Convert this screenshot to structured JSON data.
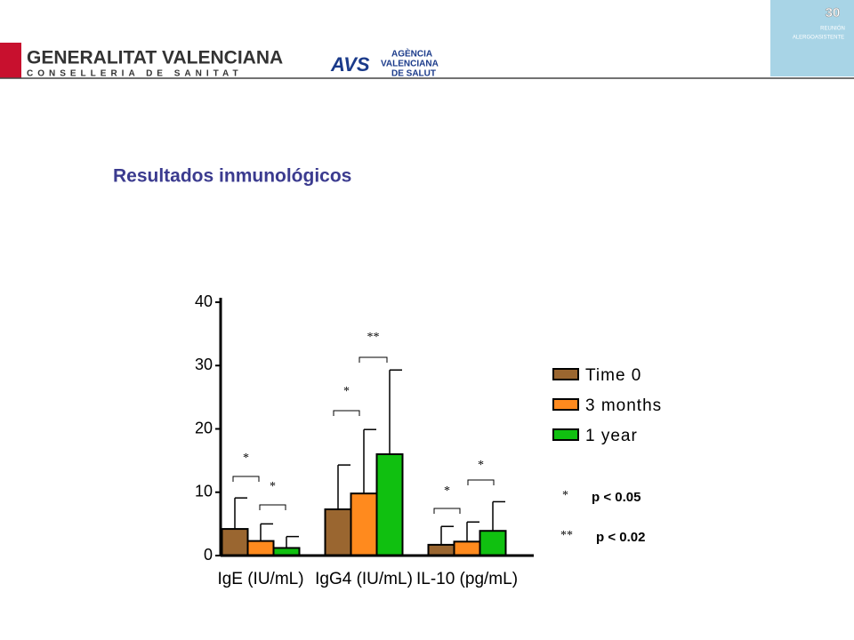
{
  "header": {
    "org_name": "GENERALITAT VALENCIANA",
    "org_dept": "CONSELLERIA DE SANITAT",
    "agency_logo": "AVS",
    "agency_line1": "AGÈNCIA",
    "agency_line2": "VALENCIANA",
    "agency_line3": "DE SALUT",
    "badge_number": "30",
    "badge_line1": "REUNIÓN",
    "badge_line2": "ALERGOASISTENTE"
  },
  "slide_title": "Resultados inmunológicos",
  "chart_data": {
    "type": "bar",
    "categories": [
      "IgE (IU/mL)",
      "IgG4 (IU/mL)",
      "IL-10 (pg/mL)"
    ],
    "series": [
      {
        "name": "Time 0",
        "color": "#9a6630",
        "values": [
          4.2,
          7.3,
          1.7
        ],
        "errors": [
          4.9,
          7.0,
          2.9
        ]
      },
      {
        "name": "3 months",
        "color": "#ff8a1e",
        "values": [
          2.3,
          9.8,
          2.2
        ],
        "errors": [
          2.7,
          10.1,
          3.1
        ]
      },
      {
        "name": "1 year",
        "color": "#10c010",
        "values": [
          1.2,
          16,
          3.9
        ],
        "errors": [
          1.8,
          13.3,
          4.6
        ]
      }
    ],
    "ylim": [
      0,
      40
    ],
    "yticks": [
      0,
      10,
      20,
      30,
      40
    ],
    "annotations": [
      "*",
      "*",
      "*",
      "**",
      "*",
      "*"
    ],
    "footnotes": [
      {
        "symbol": "*",
        "text": "p < 0.05"
      },
      {
        "symbol": "**",
        "text": "p < 0.02"
      }
    ]
  }
}
